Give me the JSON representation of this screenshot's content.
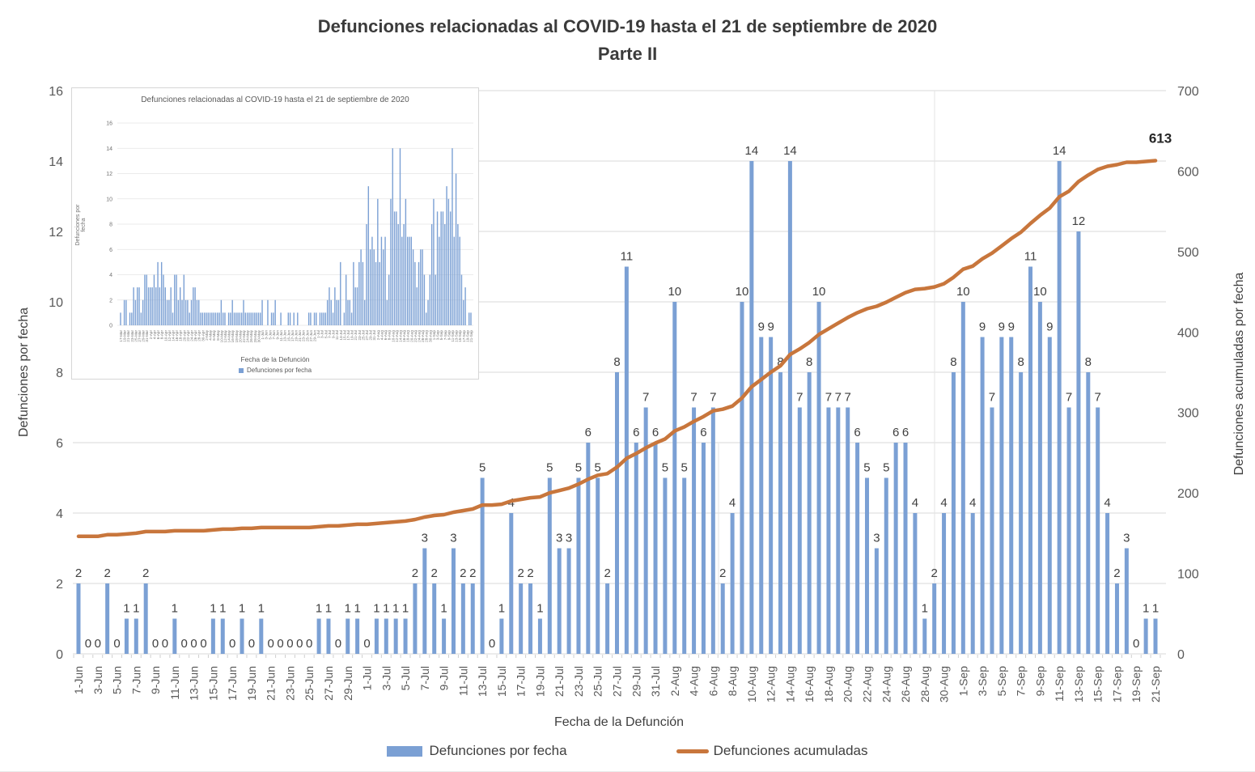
{
  "page": {
    "title_line1": "Defunciones relacionadas al COVID-19 hasta el 21 de septiembre de 2020",
    "title_line2": "Parte II"
  },
  "colors": {
    "bar": "#7BA0D4",
    "line": "#C8763C",
    "grid": "#D9D9D9",
    "minor_tick": "#CFCFCF",
    "seam": "#E3E3E3",
    "tick_text": "#595959",
    "bar_label": "#404040",
    "end_label": "#262626",
    "inset_grid": "#E4E4E4",
    "inset_tick_text": "#737373"
  },
  "legend": {
    "bar_label": "Defunciones por fecha",
    "line_label": "Defunciones acumuladas"
  },
  "chart_data": {
    "main": {
      "type": "bar+line",
      "title": "Defunciones relacionadas al COVID-19 hasta el 21 de septiembre de 2020",
      "subtitle": "Parte II",
      "x_title": "Fecha de la Defunción",
      "y_left_title": "Defunciones por fecha",
      "y_right_title": "Defunciones acumuladas por fecha",
      "y_left": {
        "min": 0,
        "max": 16,
        "step": 2
      },
      "y_right": {
        "min": 0,
        "max": 700,
        "step": 100
      },
      "y_left_ticks": [
        0,
        2,
        4,
        6,
        8,
        10,
        12,
        14,
        16
      ],
      "y_right_ticks": [
        0,
        100,
        200,
        300,
        400,
        500,
        600,
        700
      ],
      "x_label_every": 2,
      "bar_series_name": "Defunciones por fecha",
      "line_series_name": "Defunciones acumuladas",
      "cumulative_start": 144,
      "cumulative_end": 613,
      "cumulative_end_label": "613",
      "categories": [
        "1-Jun",
        "2-Jun",
        "3-Jun",
        "4-Jun",
        "5-Jun",
        "6-Jun",
        "7-Jun",
        "8-Jun",
        "9-Jun",
        "10-Jun",
        "11-Jun",
        "12-Jun",
        "13-Jun",
        "14-Jun",
        "15-Jun",
        "16-Jun",
        "17-Jun",
        "18-Jun",
        "19-Jun",
        "20-Jun",
        "21-Jun",
        "22-Jun",
        "23-Jun",
        "24-Jun",
        "25-Jun",
        "26-Jun",
        "27-Jun",
        "28-Jun",
        "29-Jun",
        "30-Jun",
        "1-Jul",
        "2-Jul",
        "3-Jul",
        "4-Jul",
        "5-Jul",
        "6-Jul",
        "7-Jul",
        "8-Jul",
        "9-Jul",
        "10-Jul",
        "11-Jul",
        "12-Jul",
        "13-Jul",
        "14-Jul",
        "15-Jul",
        "16-Jul",
        "17-Jul",
        "18-Jul",
        "19-Jul",
        "20-Jul",
        "21-Jul",
        "22-Jul",
        "23-Jul",
        "24-Jul",
        "25-Jul",
        "26-Jul",
        "27-Jul",
        "28-Jul",
        "29-Jul",
        "30-Jul",
        "31-Jul",
        "1-Aug",
        "2-Aug",
        "3-Aug",
        "4-Aug",
        "5-Aug",
        "6-Aug",
        "7-Aug",
        "8-Aug",
        "9-Aug",
        "10-Aug",
        "11-Aug",
        "12-Aug",
        "13-Aug",
        "14-Aug",
        "15-Aug",
        "16-Aug",
        "17-Aug",
        "18-Aug",
        "19-Aug",
        "20-Aug",
        "21-Aug",
        "22-Aug",
        "23-Aug",
        "24-Aug",
        "25-Aug",
        "26-Aug",
        "27-Aug",
        "28-Aug",
        "29-Aug",
        "30-Aug",
        "31-Aug",
        "1-Sep",
        "2-Sep",
        "3-Sep",
        "4-Sep",
        "5-Sep",
        "6-Sep",
        "7-Sep",
        "8-Sep",
        "9-Sep",
        "10-Sep",
        "11-Sep",
        "12-Sep",
        "13-Sep",
        "14-Sep",
        "15-Sep",
        "16-Sep",
        "17-Sep",
        "18-Sep",
        "19-Sep",
        "20-Sep",
        "21-Sep"
      ],
      "bar_values": [
        2,
        0,
        0,
        2,
        0,
        1,
        1,
        2,
        0,
        0,
        1,
        0,
        0,
        0,
        1,
        1,
        0,
        1,
        0,
        1,
        0,
        0,
        0,
        0,
        0,
        1,
        1,
        0,
        1,
        1,
        0,
        1,
        1,
        1,
        1,
        2,
        3,
        2,
        1,
        3,
        2,
        2,
        5,
        0,
        1,
        4,
        2,
        2,
        1,
        5,
        3,
        3,
        5,
        6,
        5,
        2,
        8,
        11,
        6,
        7,
        6,
        5,
        10,
        5,
        7,
        6,
        7,
        2,
        4,
        10,
        14,
        9,
        9,
        8,
        14,
        7,
        8,
        10,
        7,
        7,
        7,
        6,
        5,
        3,
        5,
        6,
        6,
        4,
        1,
        2,
        4,
        8,
        10,
        4,
        9,
        7,
        9,
        9,
        8,
        11,
        10,
        9,
        14,
        7,
        12,
        8,
        7,
        4,
        2,
        3,
        0,
        1,
        1
      ]
    },
    "inset": {
      "type": "bar",
      "title": "Defunciones relacionadas al COVID-19 hasta el 21 de septiembre de 2020",
      "x_title": "Fecha de la Defunción",
      "y_title": "Defunciones por fecha",
      "legend_label": "Defunciones por fecha",
      "y": {
        "min": 0,
        "max": 16,
        "step": 2
      },
      "y_ticks": [
        0,
        2,
        4,
        6,
        8,
        10,
        12,
        14,
        16
      ],
      "x_label_every": 2,
      "note": "inset shows full series: estimated 17-Mar..31-May values followed by the main chart values 1-Jun..21-Sep",
      "categories_pre": [
        "17-Mar",
        "18-Mar",
        "19-Mar",
        "20-Mar",
        "21-Mar",
        "22-Mar",
        "23-Mar",
        "24-Mar",
        "25-Mar",
        "26-Mar",
        "27-Mar",
        "28-Mar",
        "29-Mar",
        "30-Mar",
        "31-Mar",
        "1-Apr",
        "2-Apr",
        "3-Apr",
        "4-Apr",
        "5-Apr",
        "6-Apr",
        "7-Apr",
        "8-Apr",
        "9-Apr",
        "10-Apr",
        "11-Apr",
        "12-Apr",
        "13-Apr",
        "14-Apr",
        "15-Apr",
        "16-Apr",
        "17-Apr",
        "18-Apr",
        "19-Apr",
        "20-Apr",
        "21-Apr",
        "22-Apr",
        "23-Apr",
        "24-Apr",
        "25-Apr",
        "26-Apr",
        "27-Apr",
        "28-Apr",
        "29-Apr",
        "30-Apr",
        "1-May",
        "2-May",
        "3-May",
        "4-May",
        "5-May",
        "6-May",
        "7-May",
        "8-May",
        "9-May",
        "10-May",
        "11-May",
        "12-May",
        "13-May",
        "14-May",
        "15-May",
        "16-May",
        "17-May",
        "18-May",
        "19-May",
        "20-May",
        "21-May",
        "22-May",
        "23-May",
        "24-May",
        "25-May",
        "26-May",
        "27-May",
        "28-May",
        "29-May",
        "30-May",
        "31-May"
      ],
      "values_pre_estimated": [
        1,
        0,
        2,
        2,
        0,
        1,
        1,
        3,
        2,
        3,
        3,
        1,
        2,
        4,
        4,
        3,
        3,
        3,
        4,
        3,
        5,
        3,
        5,
        4,
        3,
        2,
        2,
        3,
        1,
        4,
        4,
        2,
        3,
        2,
        4,
        2,
        2,
        1,
        2,
        3,
        3,
        2,
        2,
        1,
        1,
        1,
        1,
        1,
        1,
        1,
        1,
        1,
        1,
        1,
        2,
        1,
        1,
        0,
        1,
        1,
        2,
        1,
        1,
        1,
        1,
        1,
        2,
        1,
        1,
        1,
        1,
        1,
        1,
        1,
        1,
        1
      ]
    }
  }
}
